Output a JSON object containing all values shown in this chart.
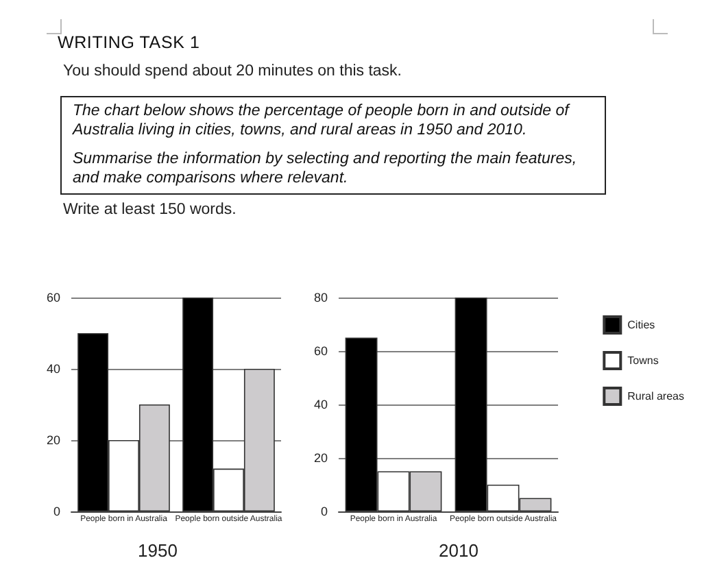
{
  "chart_data": [
    {
      "type": "other",
      "title": "WRITING TASK 1",
      "annotations": [
        "You should spend about 20 minutes on this task.",
        "The chart below shows the percentage of people born in and outside of Australia living in cities, towns, and rural areas in 1950 and 2010.",
        "Summarise the information by selecting and reporting the main features, and make comparisons where relevant.",
        "Write at least 150 words."
      ]
    },
    {
      "type": "bar",
      "title": "1950",
      "categories": [
        "People born in Australia",
        "People born outside Australia"
      ],
      "series": [
        {
          "color": "#000000",
          "values": [
            50,
            60
          ]
        },
        {
          "color": "#ffffff",
          "values": [
            20,
            12
          ]
        },
        {
          "color": "#cdcbcd",
          "values": [
            30,
            40
          ]
        }
      ],
      "ylim": [
        0,
        60
      ],
      "yticks": [
        0,
        20,
        40,
        60
      ],
      "grid": "y",
      "legend": false
    },
    {
      "type": "bar",
      "title": "2010",
      "categories": [
        "People born in Australia",
        "People born outside Australia"
      ],
      "series": [
        {
          "name": "Cities",
          "color": "#000000",
          "values": [
            65,
            80
          ]
        },
        {
          "name": "Towns",
          "color": "#ffffff",
          "values": [
            15,
            10
          ]
        },
        {
          "name": "Rural areas",
          "color": "#cdcbcd",
          "values": [
            15,
            5
          ]
        }
      ],
      "ylim": [
        0,
        80
      ],
      "yticks": [
        0,
        20,
        40,
        60,
        80
      ],
      "grid": "y",
      "legend": "right"
    }
  ]
}
